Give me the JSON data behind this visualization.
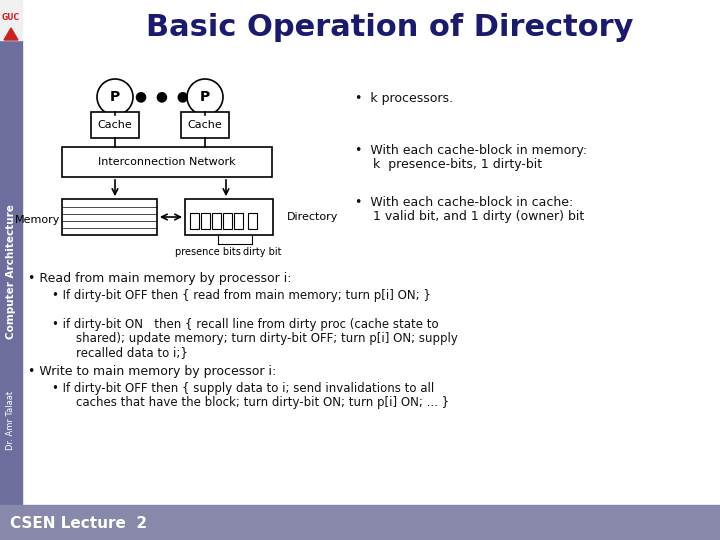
{
  "title": "Basic Operation of Directory",
  "title_color": "#1a1a6e",
  "title_fontsize": 22,
  "slide_bg": "#ffffff",
  "footer_text": "CSEN Lecture  2",
  "sidebar_text": "Computer Architecture",
  "author_text": "Dr. Amr Talaat",
  "bullet_points_right": [
    "k processors.",
    "With each cache-block in memory:\n  k  presence-bits, 1 dirty-bit",
    "With each cache-block in cache:\n  1 valid bit, and 1 dirty (owner) bit"
  ],
  "text_color": "#111111",
  "diagram_note_presence": "presence bits",
  "diagram_note_dirty": "dirty bit"
}
